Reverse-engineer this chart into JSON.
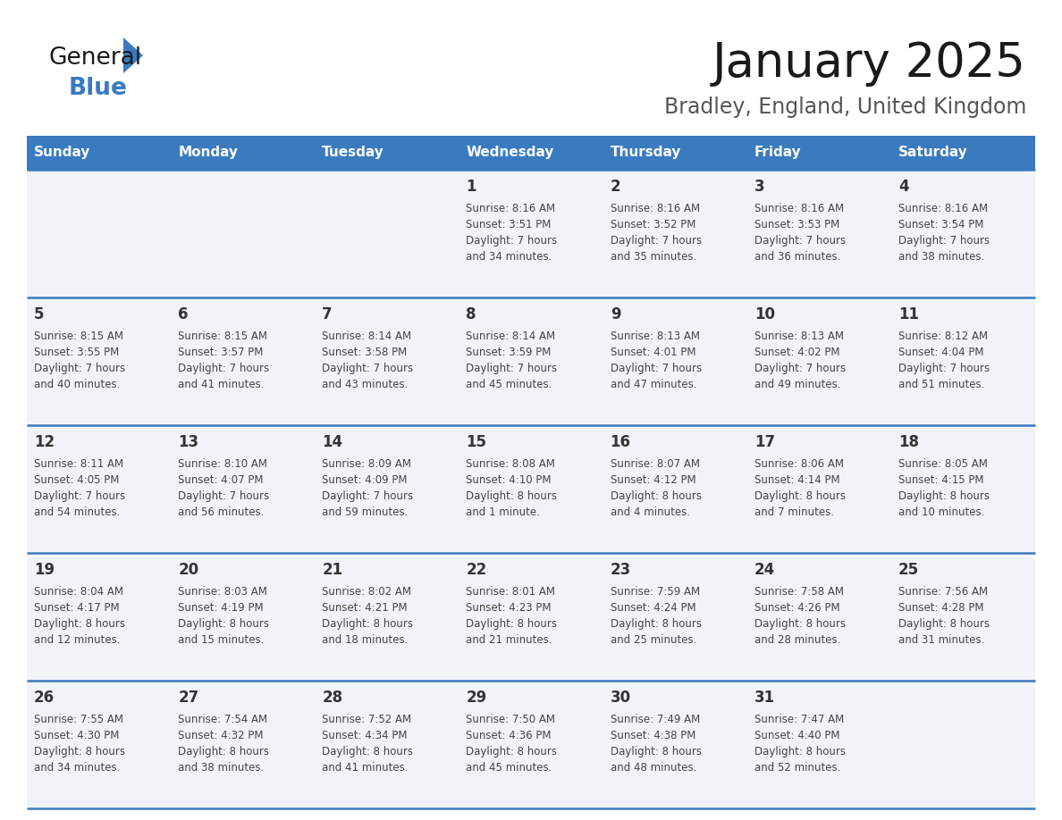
{
  "title": "January 2025",
  "subtitle": "Bradley, England, United Kingdom",
  "header_color": "#3a7bbf",
  "header_text_color": "#ffffff",
  "cell_bg_color": "#f0f4f8",
  "border_color": "#3a7bbf",
  "text_color": "#333333",
  "days_of_week": [
    "Sunday",
    "Monday",
    "Tuesday",
    "Wednesday",
    "Thursday",
    "Friday",
    "Saturday"
  ],
  "calendar_data": [
    [
      "",
      "",
      "",
      "1\nSunrise: 8:16 AM\nSunset: 3:51 PM\nDaylight: 7 hours\nand 34 minutes.",
      "2\nSunrise: 8:16 AM\nSunset: 3:52 PM\nDaylight: 7 hours\nand 35 minutes.",
      "3\nSunrise: 8:16 AM\nSunset: 3:53 PM\nDaylight: 7 hours\nand 36 minutes.",
      "4\nSunrise: 8:16 AM\nSunset: 3:54 PM\nDaylight: 7 hours\nand 38 minutes."
    ],
    [
      "5\nSunrise: 8:15 AM\nSunset: 3:55 PM\nDaylight: 7 hours\nand 40 minutes.",
      "6\nSunrise: 8:15 AM\nSunset: 3:57 PM\nDaylight: 7 hours\nand 41 minutes.",
      "7\nSunrise: 8:14 AM\nSunset: 3:58 PM\nDaylight: 7 hours\nand 43 minutes.",
      "8\nSunrise: 8:14 AM\nSunset: 3:59 PM\nDaylight: 7 hours\nand 45 minutes.",
      "9\nSunrise: 8:13 AM\nSunset: 4:01 PM\nDaylight: 7 hours\nand 47 minutes.",
      "10\nSunrise: 8:13 AM\nSunset: 4:02 PM\nDaylight: 7 hours\nand 49 minutes.",
      "11\nSunrise: 8:12 AM\nSunset: 4:04 PM\nDaylight: 7 hours\nand 51 minutes."
    ],
    [
      "12\nSunrise: 8:11 AM\nSunset: 4:05 PM\nDaylight: 7 hours\nand 54 minutes.",
      "13\nSunrise: 8:10 AM\nSunset: 4:07 PM\nDaylight: 7 hours\nand 56 minutes.",
      "14\nSunrise: 8:09 AM\nSunset: 4:09 PM\nDaylight: 7 hours\nand 59 minutes.",
      "15\nSunrise: 8:08 AM\nSunset: 4:10 PM\nDaylight: 8 hours\nand 1 minute.",
      "16\nSunrise: 8:07 AM\nSunset: 4:12 PM\nDaylight: 8 hours\nand 4 minutes.",
      "17\nSunrise: 8:06 AM\nSunset: 4:14 PM\nDaylight: 8 hours\nand 7 minutes.",
      "18\nSunrise: 8:05 AM\nSunset: 4:15 PM\nDaylight: 8 hours\nand 10 minutes."
    ],
    [
      "19\nSunrise: 8:04 AM\nSunset: 4:17 PM\nDaylight: 8 hours\nand 12 minutes.",
      "20\nSunrise: 8:03 AM\nSunset: 4:19 PM\nDaylight: 8 hours\nand 15 minutes.",
      "21\nSunrise: 8:02 AM\nSunset: 4:21 PM\nDaylight: 8 hours\nand 18 minutes.",
      "22\nSunrise: 8:01 AM\nSunset: 4:23 PM\nDaylight: 8 hours\nand 21 minutes.",
      "23\nSunrise: 7:59 AM\nSunset: 4:24 PM\nDaylight: 8 hours\nand 25 minutes.",
      "24\nSunrise: 7:58 AM\nSunset: 4:26 PM\nDaylight: 8 hours\nand 28 minutes.",
      "25\nSunrise: 7:56 AM\nSunset: 4:28 PM\nDaylight: 8 hours\nand 31 minutes."
    ],
    [
      "26\nSunrise: 7:55 AM\nSunset: 4:30 PM\nDaylight: 8 hours\nand 34 minutes.",
      "27\nSunrise: 7:54 AM\nSunset: 4:32 PM\nDaylight: 8 hours\nand 38 minutes.",
      "28\nSunrise: 7:52 AM\nSunset: 4:34 PM\nDaylight: 8 hours\nand 41 minutes.",
      "29\nSunrise: 7:50 AM\nSunset: 4:36 PM\nDaylight: 8 hours\nand 45 minutes.",
      "30\nSunrise: 7:49 AM\nSunset: 4:38 PM\nDaylight: 8 hours\nand 48 minutes.",
      "31\nSunrise: 7:47 AM\nSunset: 4:40 PM\nDaylight: 8 hours\nand 52 minutes.",
      ""
    ]
  ],
  "logo_color_general": "#1a1a1a",
  "logo_color_blue": "#3a7bbf",
  "logo_triangle_color": "#3a7bbf",
  "title_fontsize": 38,
  "subtitle_fontsize": 17,
  "header_fontsize": 11,
  "day_num_fontsize": 12,
  "cell_text_fontsize": 8.5
}
